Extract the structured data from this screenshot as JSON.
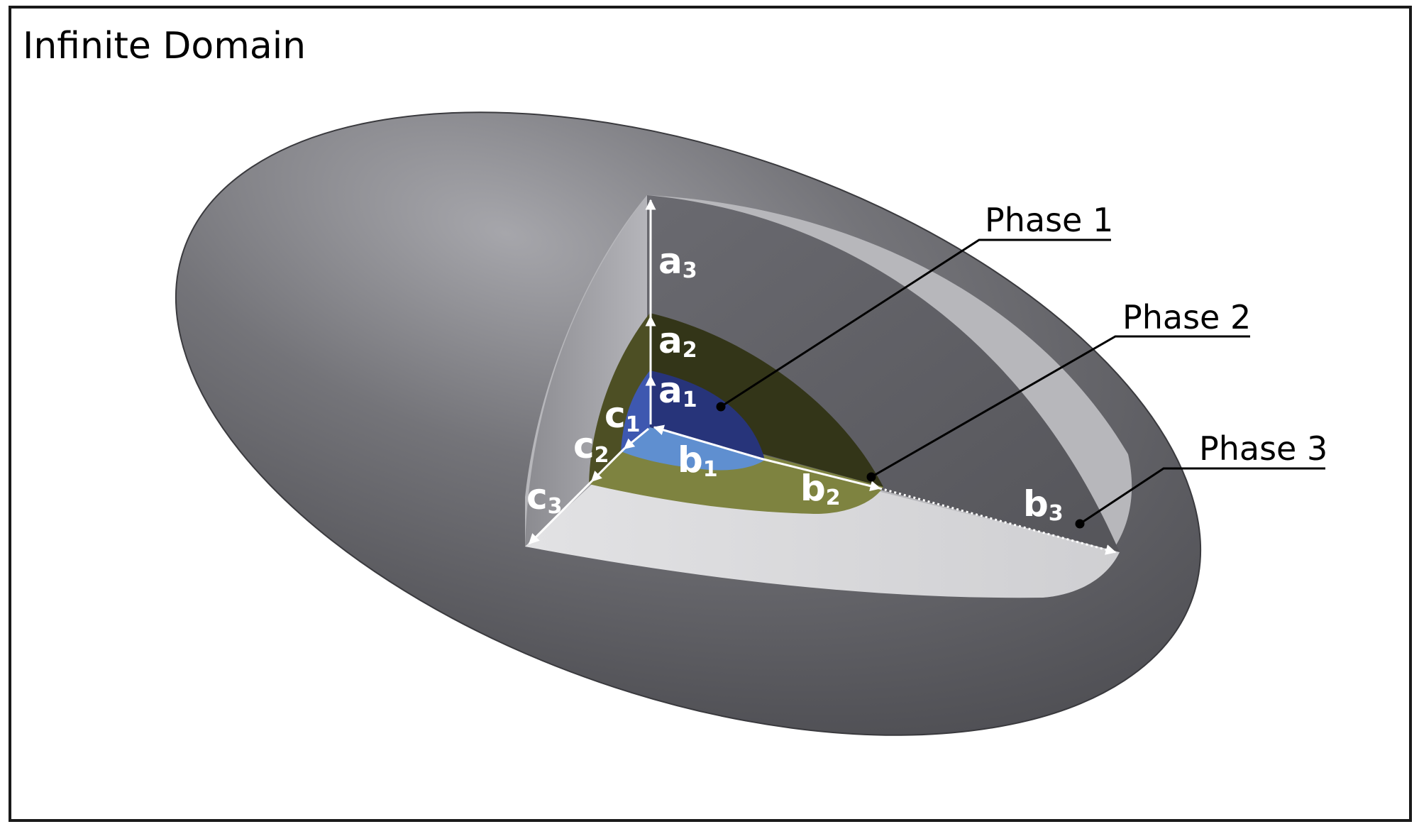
{
  "title": "Infinite Domain",
  "phases": {
    "phase1": "Phase 1",
    "phase2": "Phase 2",
    "phase3": "Phase 3"
  },
  "semi_axes": {
    "a1": {
      "base": "a",
      "sub": "1"
    },
    "a2": {
      "base": "a",
      "sub": "2"
    },
    "a3": {
      "base": "a",
      "sub": "3"
    },
    "b1": {
      "base": "b",
      "sub": "1"
    },
    "b2": {
      "base": "b",
      "sub": "2"
    },
    "b3": {
      "base": "b",
      "sub": "3"
    },
    "c1": {
      "base": "c",
      "sub": "1"
    },
    "c2": {
      "base": "c",
      "sub": "2"
    },
    "c3": {
      "base": "c",
      "sub": "3"
    }
  },
  "colors": {
    "frame": "#1a1a1a",
    "outer_shell": "#6c6c72",
    "cut_face_light": "#d7d7d9",
    "cut_face_dark": "#5e5e63",
    "rim": "#b8b8bc",
    "phase2_dark": "#333518",
    "phase2_light": "#7e8340",
    "phase1_dark": "#27347a",
    "phase1_light": "#5f8fd0",
    "arrow": "#ffffff"
  }
}
